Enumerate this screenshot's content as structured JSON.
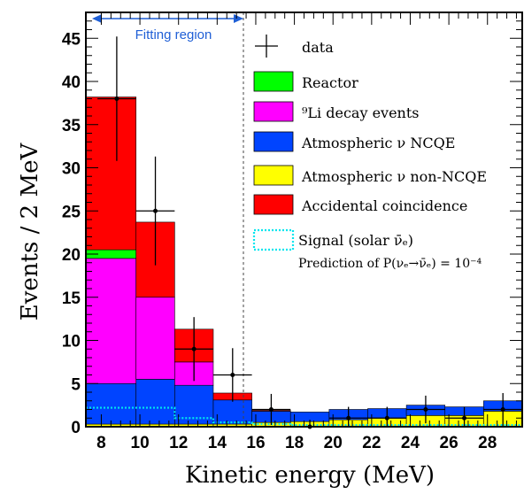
{
  "chart_data": {
    "type": "bar",
    "stacked": true,
    "xlabel": "Kinetic energy (MeV)",
    "ylabel": "Events / 2 MeV",
    "xlim": [
      7.2,
      29.8
    ],
    "ylim": [
      0,
      48
    ],
    "x_ticks": [
      "8",
      "10",
      "12",
      "14",
      "16",
      "18",
      "20",
      "22",
      "24",
      "26",
      "28"
    ],
    "y_ticks": [
      "0",
      "5",
      "10",
      "15",
      "20",
      "25",
      "30",
      "35",
      "40",
      "45"
    ],
    "bin_edges": [
      7.2,
      9.8,
      11.8,
      13.8,
      15.8,
      17.8,
      19.8,
      21.8,
      23.8,
      25.8,
      27.8,
      29.8
    ],
    "fitting_region": {
      "label": "Fitting region",
      "x_start": 7.2,
      "x_end": 15.8,
      "color": "#1f5fd6"
    },
    "series": [
      {
        "name": "Atmospheric ν non-NCQE",
        "key": "nonncqe",
        "color": "#ffff00",
        "values": [
          0.3,
          0.3,
          0.3,
          0.3,
          0.5,
          0.6,
          0.8,
          1.0,
          1.3,
          1.3,
          1.8
        ]
      },
      {
        "name": "Atmospheric ν NCQE",
        "key": "ncqe",
        "color": "#0044ff",
        "values": [
          4.7,
          5.2,
          4.5,
          2.8,
          1.3,
          1.1,
          1.2,
          1.1,
          1.2,
          1.0,
          1.2
        ]
      },
      {
        "name": "⁹Li decay events",
        "key": "li9",
        "color": "#ff00ff",
        "values": [
          14.5,
          9.5,
          2.7,
          0.0,
          0.0,
          0.0,
          0.0,
          0.0,
          0.0,
          0.0,
          0.0
        ]
      },
      {
        "name": "Reactor",
        "key": "reactor",
        "color": "#00ff00",
        "values": [
          1.0,
          0.0,
          0.0,
          0.0,
          0.0,
          0.0,
          0.0,
          0.0,
          0.0,
          0.0,
          0.0
        ]
      },
      {
        "name": "Accidental coincidence",
        "key": "accidental",
        "color": "#ff0000",
        "values": [
          17.7,
          8.7,
          3.8,
          0.8,
          0.1,
          0.0,
          0.0,
          0.0,
          0.0,
          0.0,
          0.0
        ]
      }
    ],
    "signal": {
      "name": "Signal (solar ν̄ₑ)",
      "color": "#00e5ee",
      "values": [
        2.2,
        2.2,
        1.0,
        0.5,
        0.3,
        0.2,
        0.2,
        0.2,
        0.2,
        0.2,
        0.2
      ]
    },
    "data_points": [
      {
        "x": 8.8,
        "y": 38,
        "err": 7.2
      },
      {
        "x": 10.8,
        "y": 25,
        "err": 6.3
      },
      {
        "x": 12.8,
        "y": 9,
        "err": 3.7
      },
      {
        "x": 14.8,
        "y": 6,
        "err": 3.1
      },
      {
        "x": 16.8,
        "y": 2,
        "err": 1.8
      },
      {
        "x": 18.8,
        "y": 0,
        "err": 0.8
      },
      {
        "x": 20.8,
        "y": 1,
        "err": 1.3
      },
      {
        "x": 22.8,
        "y": 1,
        "err": 1.3
      },
      {
        "x": 24.8,
        "y": 2,
        "err": 1.6
      },
      {
        "x": 26.8,
        "y": 1,
        "err": 1.3
      },
      {
        "x": 28.8,
        "y": 2,
        "err": 1.9
      }
    ],
    "legend": {
      "placement": "top-right",
      "entries": [
        {
          "label": "data",
          "style": "cross",
          "color": "#000000"
        },
        {
          "label": "Reactor",
          "style": "box",
          "color": "#00ff00"
        },
        {
          "label": "⁹Li decay events",
          "style": "box",
          "color": "#ff00ff"
        },
        {
          "label": "Atmospheric ν NCQE",
          "style": "box",
          "color": "#0044ff"
        },
        {
          "label": "Atmospheric ν non-NCQE",
          "style": "box",
          "color": "#ffff00"
        },
        {
          "label": "Accidental coincidence",
          "style": "box",
          "color": "#ff0000"
        },
        {
          "label": "Signal (solar ν̄ₑ)",
          "style": "dotted-box",
          "color": "#00e5ee"
        }
      ],
      "signal_note": "Prediction of P(νₑ→ν̄ₑ) = 10⁻⁴"
    }
  }
}
